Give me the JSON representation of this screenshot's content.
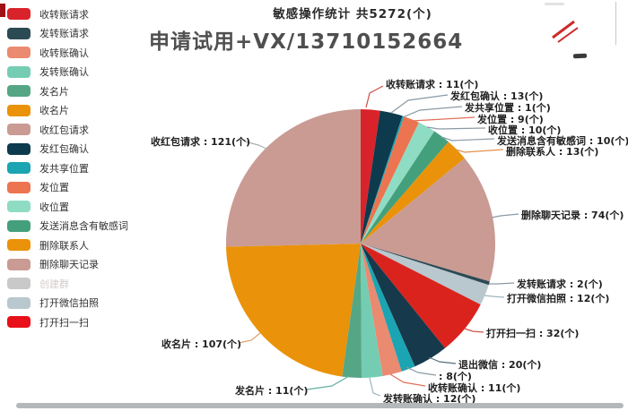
{
  "header": {
    "title": "敏感操作统计 共5272(个)"
  },
  "watermark": {
    "text": "申请试用+VX/13710152664"
  },
  "legend": {
    "items": [
      {
        "label": "收转账请求",
        "color": "#d9232b",
        "disabled": false
      },
      {
        "label": "发转账请求",
        "color": "#2c4a54",
        "disabled": false
      },
      {
        "label": "收转账确认",
        "color": "#ea8a70",
        "disabled": false
      },
      {
        "label": "发转账确认",
        "color": "#74cdb2",
        "disabled": false
      },
      {
        "label": "发名片",
        "color": "#55a685",
        "disabled": false
      },
      {
        "label": "收名片",
        "color": "#ea9209",
        "disabled": false
      },
      {
        "label": "收红包请求",
        "color": "#c99b93",
        "disabled": false
      },
      {
        "label": "发红包确认",
        "color": "#0e3a4d",
        "disabled": false
      },
      {
        "label": "发共享位置",
        "color": "#1ba4b2",
        "disabled": false
      },
      {
        "label": "发位置",
        "color": "#ed7450",
        "disabled": false
      },
      {
        "label": "收位置",
        "color": "#8fdcc4",
        "disabled": false
      },
      {
        "label": "发送消息含有敏感词",
        "color": "#44a07c",
        "disabled": false
      },
      {
        "label": "删除联系人",
        "color": "#ea9209",
        "disabled": false
      },
      {
        "label": "删除聊天记录",
        "color": "#c99b93",
        "disabled": false
      },
      {
        "label": "创建群",
        "color": "#c9c9c9",
        "disabled": true
      },
      {
        "label": "打开微信拍照",
        "color": "#b9c7ce",
        "disabled": false
      },
      {
        "label": "打开扫一扫",
        "color": "#e8101b",
        "disabled": false
      }
    ]
  },
  "chart_data": {
    "type": "pie",
    "title": "敏感操作统计 共5272(个)",
    "unit": "个",
    "legend_position": "left",
    "series": [
      {
        "name": "收转账请求",
        "value": 11,
        "color": "#d9232b"
      },
      {
        "name": "发红包确认",
        "value": 13,
        "color": "#0e3a4d"
      },
      {
        "name": "发共享位置",
        "value": 1,
        "color": "#1ba4b2"
      },
      {
        "name": "发位置",
        "value": 9,
        "color": "#ed7450"
      },
      {
        "name": "收位置",
        "value": 10,
        "color": "#8fdcc4"
      },
      {
        "name": "发送消息含有敏感词",
        "value": 10,
        "color": "#44a07c"
      },
      {
        "name": "删除联系人",
        "value": 13,
        "color": "#ea9209"
      },
      {
        "name": "删除聊天记录",
        "value": 74,
        "color": "#c99b93"
      },
      {
        "name": "发转账请求",
        "value": 2,
        "color": "#2c4a54"
      },
      {
        "name": "打开微信拍照",
        "value": 12,
        "color": "#b9c7ce"
      },
      {
        "name": "打开扫一扫",
        "value": 32,
        "color": "#db231d"
      },
      {
        "name": "退出微信",
        "value": 20,
        "color": "#16394b"
      },
      {
        "name": "",
        "value": 8,
        "color": "#1ba4b2"
      },
      {
        "name": "收转账确认",
        "value": 11,
        "color": "#ea8a70"
      },
      {
        "name": "发转账确认",
        "value": 12,
        "color": "#74cdb2"
      },
      {
        "name": "发名片",
        "value": 11,
        "color": "#55a685"
      },
      {
        "name": "收名片",
        "value": 107,
        "color": "#ea9209"
      },
      {
        "name": "收红包请求",
        "value": 121,
        "color": "#c99b93"
      }
    ]
  },
  "callouts": [
    {
      "text": "收转账请求 : 11(个)",
      "line_color": "#cf4a43"
    },
    {
      "text": "发红包确认 : 13(个)",
      "line_color": "#8a9aa5"
    },
    {
      "text": "发共享位置 : 1(个)",
      "line_color": "#8a9aa5"
    },
    {
      "text": "发位置 : 9(个)",
      "line_color": "#e0705a"
    },
    {
      "text": "收位置 : 10(个)",
      "line_color": "#8a9aa5"
    },
    {
      "text": "发送消息含有敏感词 : 10(个)",
      "line_color": "#8a9aa5"
    },
    {
      "text": "删除联系人 : 13(个)",
      "line_color": "#e2914d"
    },
    {
      "text": "删除聊天记录 : 74(个)",
      "line_color": "#8a9aa5"
    },
    {
      "text": "收红包请求 : 121(个)",
      "line_color": "#aab0b5"
    },
    {
      "text": "发转账请求 : 2(个)",
      "line_color": "#8a9aa5"
    },
    {
      "text": "打开微信拍照 : 12(个)",
      "line_color": "#9fb3bd"
    },
    {
      "text": "打开扫一扫 : 32(个)",
      "line_color": "#d0544a"
    },
    {
      "text": "退出微信 : 20(个)",
      "line_color": "#55707e"
    },
    {
      "text": " : 8(个)",
      "line_color": "#8a9aa5"
    },
    {
      "text": "收转账确认 : 11(个)",
      "line_color": "#e0705a"
    },
    {
      "text": "发转账确认 : 12(个)",
      "line_color": "#9fb3bd"
    },
    {
      "text": "发名片 : 11(个)",
      "line_color": "#63b0a0"
    },
    {
      "text": "收名片 : 107(个)",
      "line_color": "#e2a06a"
    }
  ]
}
